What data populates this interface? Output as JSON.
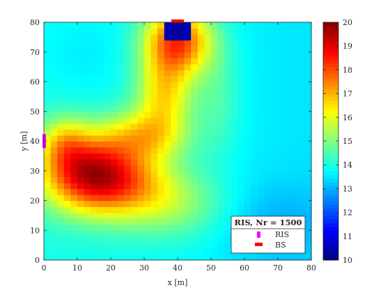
{
  "chart_data": {
    "type": "heatmap",
    "xlabel": "x [m]",
    "ylabel": "y [m]",
    "xlim": [
      0,
      80
    ],
    "ylim": [
      0,
      80
    ],
    "x_ticks": [
      0,
      10,
      20,
      30,
      40,
      50,
      60,
      70,
      80
    ],
    "y_ticks": [
      0,
      10,
      20,
      30,
      40,
      50,
      60,
      70,
      80
    ],
    "colormap": "jet",
    "clim": [
      10,
      20
    ],
    "colorbar_ticks": [
      10,
      11,
      12,
      13,
      14,
      15,
      16,
      17,
      18,
      19,
      20
    ],
    "grid": false,
    "grid_resolution_m": 2,
    "field_description": "Received power map: hot spot beneath BS at top center, a high-value lobe around (12,30) fed by the RIS on the left edge, diagonal ridge connecting them, cooler values toward the right and bottom edges.",
    "approx_values": [
      {
        "x": 40,
        "y": 78,
        "value": 10
      },
      {
        "x": 40,
        "y": 70,
        "value": 18.2
      },
      {
        "x": 35,
        "y": 55,
        "value": 17.4
      },
      {
        "x": 25,
        "y": 42,
        "value": 17.3
      },
      {
        "x": 12,
        "y": 30,
        "value": 18.2
      },
      {
        "x": 20,
        "y": 25,
        "value": 17.5
      },
      {
        "x": 30,
        "y": 20,
        "value": 16.2
      },
      {
        "x": 55,
        "y": 60,
        "value": 14.9
      },
      {
        "x": 70,
        "y": 40,
        "value": 14.5
      },
      {
        "x": 65,
        "y": 5,
        "value": 13.8
      },
      {
        "x": 5,
        "y": 70,
        "value": 14.3
      }
    ],
    "markers": [
      {
        "name": "RIS",
        "x": 0,
        "y": 40,
        "color": "#ff00ff",
        "shape": "vertical-bar"
      },
      {
        "name": "BS",
        "x": 40,
        "y": 80,
        "color": "#ff0000",
        "shape": "horizontal-bar"
      }
    ],
    "legend": {
      "title": "RIS, Nr = 1500",
      "entries": [
        "RIS",
        "BS"
      ],
      "location": "bottom-right"
    }
  }
}
